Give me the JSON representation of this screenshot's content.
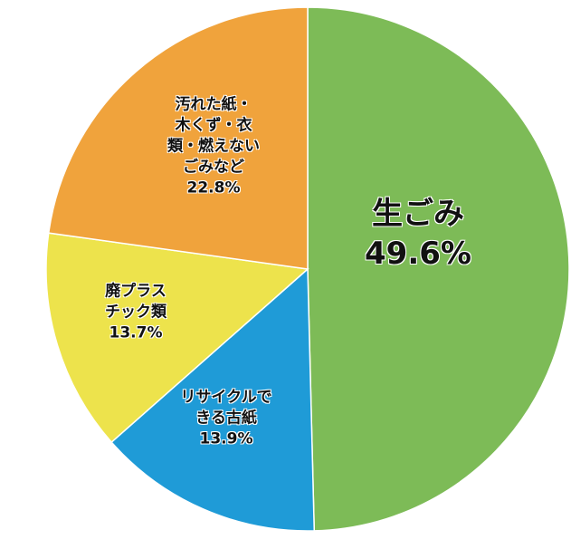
{
  "chart_data": {
    "type": "pie",
    "categories": [
      "生ごみ",
      "リサイクルで\nきる古紙",
      "廃プラス\nチック類",
      "汚れた紙・\n木くず・衣\n類・燃えない\nごみなど"
    ],
    "values": [
      49.6,
      13.9,
      13.7,
      22.8
    ],
    "value_labels": [
      "49.6%",
      "13.9%",
      "13.7%",
      "22.8%"
    ],
    "colors": [
      "#7dbb57",
      "#1f9bd7",
      "#ede34c",
      "#f0a33c"
    ]
  }
}
